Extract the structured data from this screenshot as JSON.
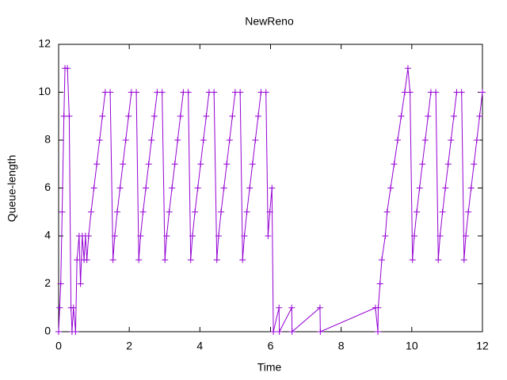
{
  "chart_data": {
    "type": "line",
    "title": "NewReno",
    "x_label": "Time",
    "y_label": "Queue-length",
    "color": "#9400d3",
    "x": [
      0,
      0.03,
      0.06,
      0.1,
      0.15,
      0.18,
      0.25,
      0.3,
      0.35,
      0.38,
      0.42,
      0.48,
      0.52,
      0.58,
      0.62,
      0.67,
      0.72,
      0.76,
      0.8,
      0.85,
      0.92,
      1.0,
      1.08,
      1.16,
      1.24,
      1.32,
      1.46,
      1.54,
      1.59,
      1.66,
      1.74,
      1.82,
      1.9,
      1.98,
      2.06,
      2.2,
      2.27,
      2.32,
      2.39,
      2.47,
      2.55,
      2.63,
      2.71,
      2.79,
      2.93,
      3.01,
      3.06,
      3.13,
      3.21,
      3.29,
      3.37,
      3.45,
      3.53,
      3.67,
      3.74,
      3.79,
      3.86,
      3.94,
      4.02,
      4.1,
      4.18,
      4.26,
      4.4,
      4.48,
      4.53,
      4.6,
      4.68,
      4.76,
      4.84,
      4.92,
      5.0,
      5.14,
      5.21,
      5.26,
      5.33,
      5.41,
      5.49,
      5.57,
      5.65,
      5.73,
      5.87,
      5.93,
      5.98,
      6.04,
      6.08,
      6.24,
      6.25,
      6.6,
      6.61,
      7.4,
      7.41,
      8.97,
      9.04,
      9.05,
      9.1,
      9.15,
      9.25,
      9.3,
      9.4,
      9.5,
      9.6,
      9.7,
      9.8,
      9.89,
      9.95,
      10.02,
      10.07,
      10.14,
      10.22,
      10.3,
      10.38,
      10.46,
      10.54,
      10.68,
      10.75,
      10.8,
      10.87,
      10.95,
      11.03,
      11.11,
      11.19,
      11.27,
      11.41,
      11.48,
      11.53,
      11.6,
      11.68,
      11.76,
      11.84,
      11.92,
      12.0
    ],
    "values": [
      0,
      1,
      2,
      5,
      9,
      11,
      11,
      9,
      1,
      0,
      1,
      0,
      3,
      4,
      2,
      4,
      3,
      4,
      3,
      4,
      5,
      6,
      7,
      8,
      9,
      10,
      10,
      3,
      4,
      5,
      6,
      7,
      8,
      9,
      10,
      10,
      3,
      4,
      5,
      6,
      7,
      8,
      9,
      10,
      10,
      3,
      4,
      5,
      6,
      7,
      8,
      9,
      10,
      10,
      3,
      4,
      5,
      6,
      7,
      8,
      9,
      10,
      10,
      3,
      4,
      5,
      6,
      7,
      8,
      9,
      10,
      10,
      3,
      4,
      5,
      6,
      7,
      8,
      9,
      10,
      10,
      4,
      5,
      6,
      0,
      1,
      0,
      1,
      0,
      1,
      0,
      1,
      0,
      1,
      2,
      3,
      4,
      5,
      6,
      7,
      8,
      9,
      10,
      11,
      10,
      3,
      4,
      5,
      6,
      7,
      8,
      9,
      10,
      10,
      3,
      4,
      5,
      6,
      7,
      8,
      9,
      10,
      10,
      3,
      4,
      5,
      6,
      7,
      8,
      9,
      10
    ],
    "xlim": [
      0,
      12
    ],
    "ylim": [
      0,
      12
    ],
    "xticks": [
      0,
      2,
      4,
      6,
      8,
      10,
      12
    ],
    "yticks": [
      0,
      2,
      4,
      6,
      8,
      10,
      12
    ]
  }
}
